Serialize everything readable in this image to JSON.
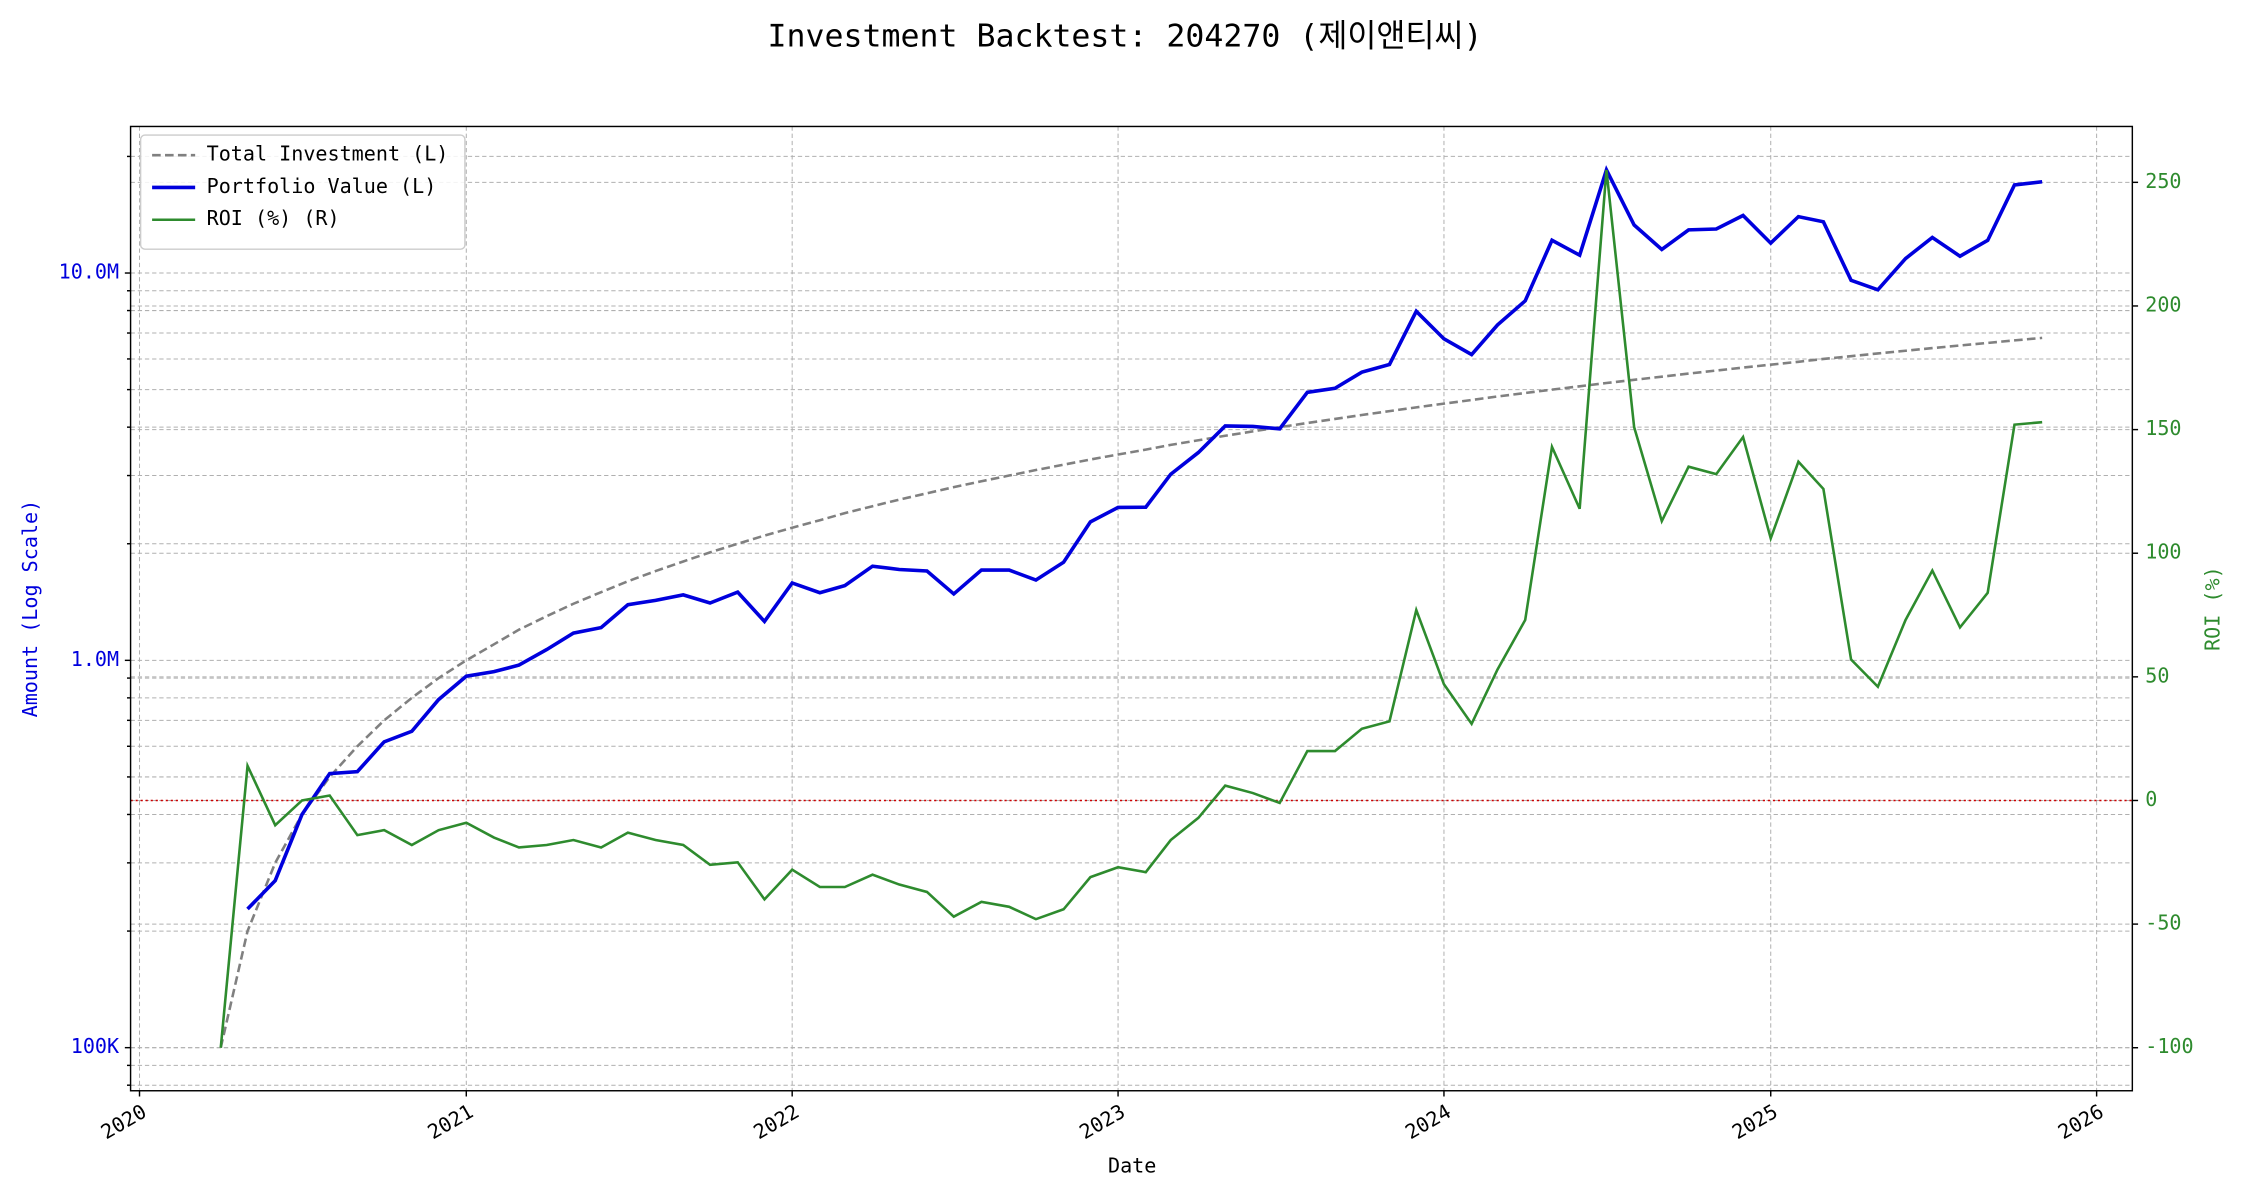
{
  "chart_data": {
    "type": "line",
    "title": "Investment Backtest: 204270 (제이앤티씨)",
    "xlabel": "Date",
    "ylabel": "Amount (Log Scale)",
    "y2label": "ROI (%)",
    "log_y": true,
    "grid": true,
    "legend": "upper left",
    "reference_line": {
      "axis": "y2",
      "value": 0,
      "color": "#cc0000"
    },
    "x": [
      "2020-04",
      "2020-05",
      "2020-06",
      "2020-07",
      "2020-08",
      "2020-09",
      "2020-10",
      "2020-11",
      "2020-12",
      "2021-01",
      "2021-02",
      "2021-03",
      "2021-04",
      "2021-05",
      "2021-06",
      "2021-07",
      "2021-08",
      "2021-09",
      "2021-10",
      "2021-11",
      "2021-12",
      "2022-01",
      "2022-02",
      "2022-03",
      "2022-04",
      "2022-05",
      "2022-06",
      "2022-07",
      "2022-08",
      "2022-09",
      "2022-10",
      "2022-11",
      "2022-12",
      "2023-01",
      "2023-02",
      "2023-03",
      "2023-04",
      "2023-05",
      "2023-06",
      "2023-07",
      "2023-08",
      "2023-09",
      "2023-10",
      "2023-11",
      "2023-12",
      "2024-01",
      "2024-02",
      "2024-03",
      "2024-04",
      "2024-05",
      "2024-06",
      "2024-07",
      "2024-08",
      "2024-09",
      "2024-10",
      "2024-11",
      "2024-12",
      "2025-01",
      "2025-02",
      "2025-03",
      "2025-04",
      "2025-05",
      "2025-06",
      "2025-07",
      "2025-08",
      "2025-09",
      "2025-10",
      "2025-11"
    ],
    "xlim": [
      "2019-12-22",
      "2026-02-10"
    ],
    "xticks": [
      "2020",
      "2021",
      "2022",
      "2023",
      "2024",
      "2025",
      "2026"
    ],
    "ylim": [
      77400,
      23900000
    ],
    "yticks": [
      {
        "value": 100000,
        "label": "100K"
      },
      {
        "value": 1000000,
        "label": "1.0M"
      },
      {
        "value": 10000000,
        "label": "10.0M"
      }
    ],
    "yminorticks": [
      80000,
      90000,
      200000,
      300000,
      400000,
      500000,
      600000,
      700000,
      800000,
      900000,
      2000000,
      3000000,
      4000000,
      5000000,
      6000000,
      7000000,
      8000000,
      9000000,
      20000000
    ],
    "y2lim": [
      -117.4,
      272.6
    ],
    "y2ticks": [
      -100,
      -50,
      0,
      50,
      100,
      150,
      200,
      250
    ],
    "series": [
      {
        "name": "Total Investment (L)",
        "color": "#808080",
        "dash": true,
        "values": [
          100000,
          200000,
          300000,
          400000,
          500000,
          600000,
          700000,
          800000,
          900000,
          1000000,
          1100000,
          1200000,
          1300000,
          1400000,
          1500000,
          1600000,
          1700000,
          1800000,
          1900000,
          2000000,
          2100000,
          2200000,
          2300000,
          2400000,
          2500000,
          2600000,
          2700000,
          2800000,
          2900000,
          3000000,
          3100000,
          3200000,
          3300000,
          3400000,
          3500000,
          3600000,
          3700000,
          3800000,
          3900000,
          4000000,
          4100000,
          4200000,
          4300000,
          4400000,
          4500000,
          4600000,
          4700000,
          4800000,
          4900000,
          5000000,
          5100000,
          5200000,
          5300000,
          5400000,
          5500000,
          5600000,
          5700000,
          5800000,
          5900000,
          6000000,
          6100000,
          6200000,
          6300000,
          6400000,
          6500000,
          6600000,
          6700000,
          6800000
        ]
      },
      {
        "name": "Portfolio Value (L)",
        "color": "#0000dd",
        "values": [
          null,
          228000,
          270000,
          400000,
          510000,
          516000,
          616000,
          656000,
          792000,
          910000,
          935000,
          972000,
          1066000,
          1176000,
          1215000,
          1392000,
          1428000,
          1476000,
          1406000,
          1500000,
          1260000,
          1584000,
          1495000,
          1560000,
          1750000,
          1716000,
          1701000,
          1484000,
          1711000,
          1710000,
          1612000,
          1792000,
          2277000,
          2482000,
          2485000,
          3024000,
          3441000,
          4028000,
          4017000,
          3960000,
          4920000,
          5040000,
          5547000,
          5808000,
          7965000,
          6762000,
          6157000,
          7344000,
          8477000,
          12150000,
          11118000,
          18460000,
          13303000,
          11502000,
          12925000,
          12992000,
          14079000,
          11948000,
          13983000,
          13560000,
          9577000,
          9052000,
          10899000,
          12352000,
          11050000,
          12144000,
          16884000,
          17204000
        ]
      },
      {
        "name": "ROI (%) (R)",
        "color": "#2e8b2e",
        "axis": "y2",
        "values": [
          -100,
          14,
          -10,
          0,
          2,
          -14,
          -12,
          -18,
          -12,
          -9,
          -15,
          -19,
          -18,
          -16,
          -19,
          -13,
          -16,
          -18,
          -26,
          -25,
          -40,
          -28,
          -35,
          -35,
          -30,
          -34,
          -37,
          -47,
          -41,
          -43,
          -48,
          -44,
          -31,
          -27,
          -29,
          -16,
          -7,
          6,
          3,
          -1,
          20,
          20,
          29,
          32,
          77,
          47,
          31,
          53,
          73,
          143,
          118,
          255,
          151,
          113,
          135,
          132,
          147,
          106,
          137,
          126,
          57,
          46,
          73,
          93,
          70,
          84,
          152,
          153
        ]
      }
    ]
  }
}
